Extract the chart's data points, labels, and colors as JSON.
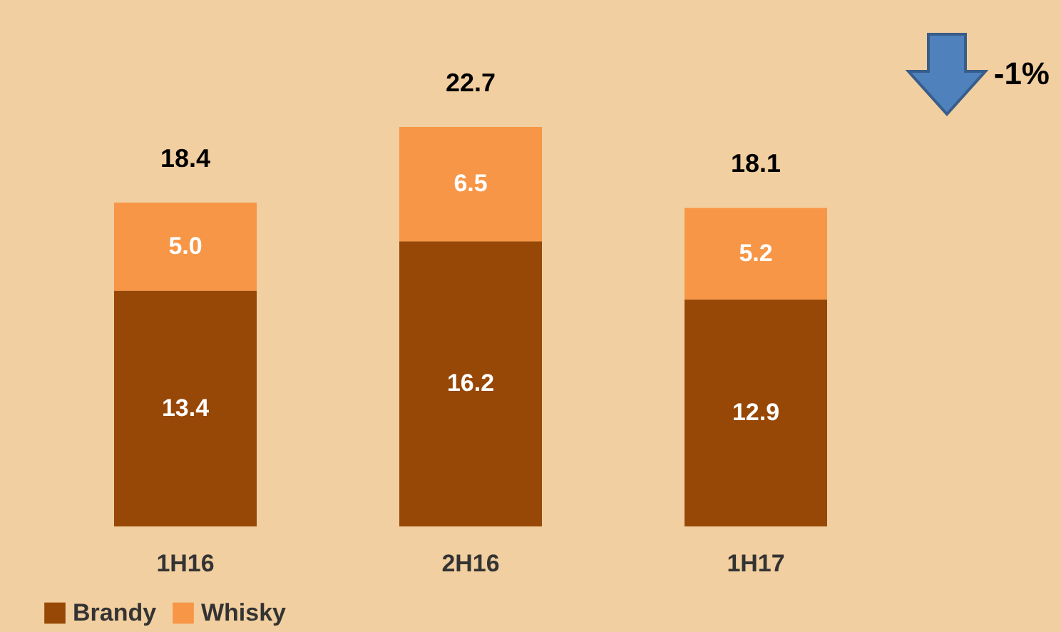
{
  "chart_data": {
    "type": "bar",
    "stacked": true,
    "categories": [
      "1H16",
      "2H16",
      "1H17"
    ],
    "series": [
      {
        "name": "Brandy",
        "color": "#974706",
        "values": [
          13.4,
          16.2,
          12.9
        ],
        "value_labels": [
          "13.4",
          "16.2",
          "12.9"
        ]
      },
      {
        "name": "Whisky",
        "color": "#f79646",
        "values": [
          5.0,
          6.5,
          5.2
        ],
        "value_labels": [
          "5.0",
          "6.5",
          "5.2"
        ]
      }
    ],
    "totals": [
      "18.4",
      "22.7",
      "18.1"
    ],
    "legend": "bottom",
    "annotations": [
      "-1%"
    ]
  }
}
